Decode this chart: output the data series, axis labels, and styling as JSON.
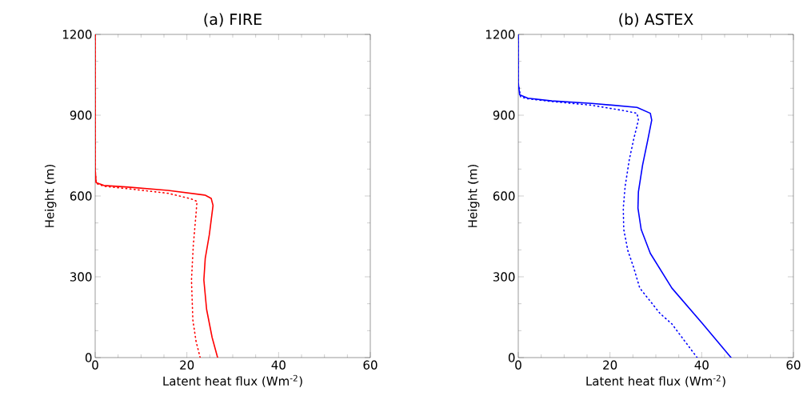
{
  "chart_data": [
    {
      "type": "line",
      "title": "(a) FIRE",
      "xlabel": "Latent heat flux (Wm$^{-2}$)",
      "ylabel": "Height (m)",
      "xlim": [
        0,
        60
      ],
      "xticks": [
        0,
        20,
        40,
        60
      ],
      "ylim": [
        0,
        1200
      ],
      "yticks": [
        0,
        300,
        600,
        900,
        1200
      ],
      "series": [
        {
          "color": "#ff0000",
          "line_style": "solid",
          "x": [
            26.7,
            25.5,
            24.3,
            23.7,
            24.0,
            24.9,
            25.7,
            25.3,
            24.0,
            15.9,
            7.2,
            1.9,
            0.2,
            0,
            0
          ],
          "values": [
            0,
            75,
            179,
            288,
            368,
            457,
            565,
            591,
            603,
            621,
            633,
            639,
            650,
            700,
            1200
          ]
        },
        {
          "color": "#ff0000",
          "line_style": "dotted",
          "x": [
            22.9,
            22.0,
            21.3,
            21.0,
            21.4,
            22.0,
            22.2,
            20.8,
            15.9,
            7.2,
            1.9,
            0.2,
            0,
            0
          ],
          "values": [
            0,
            60,
            140,
            288,
            417,
            535,
            580,
            590,
            610,
            627,
            636,
            647,
            700,
            1200
          ]
        }
      ]
    },
    {
      "type": "line",
      "title": "(b) ASTEX",
      "xlabel": "Latent heat flux (Wm$^{-2}$)",
      "ylabel": "Height (m)",
      "xlim": [
        0,
        60
      ],
      "xticks": [
        0,
        20,
        40,
        60
      ],
      "ylim": [
        0,
        1200
      ],
      "yticks": [
        0,
        300,
        600,
        900,
        1200
      ],
      "series": [
        {
          "color": "#0000ff",
          "line_style": "solid",
          "x": [
            46.4,
            40.1,
            33.5,
            28.8,
            26.8,
            26.1,
            26.2,
            27.1,
            28.3,
            29.1,
            28.8,
            25.9,
            16.0,
            7.3,
            2.1,
            0.3,
            0,
            0
          ],
          "values": [
            0,
            128,
            258,
            387,
            476,
            555,
            615,
            714,
            813,
            882,
            907,
            929,
            944,
            953,
            963,
            976,
            1020,
            1200
          ]
        },
        {
          "color": "#0000ff",
          "line_style": "dotted",
          "x": [
            39.0,
            33.5,
            30.9,
            28.8,
            26.5,
            25.1,
            23.9,
            23.0,
            22.9,
            23.3,
            24.2,
            25.2,
            26.2,
            25.9,
            23.0,
            16.0,
            7.3,
            2.1,
            0.5,
            0,
            0
          ],
          "values": [
            0,
            125,
            164,
            209,
            258,
            338,
            397,
            476,
            555,
            635,
            734,
            813,
            882,
            907,
            917,
            937,
            951,
            961,
            968,
            1020,
            1200
          ]
        }
      ]
    }
  ]
}
